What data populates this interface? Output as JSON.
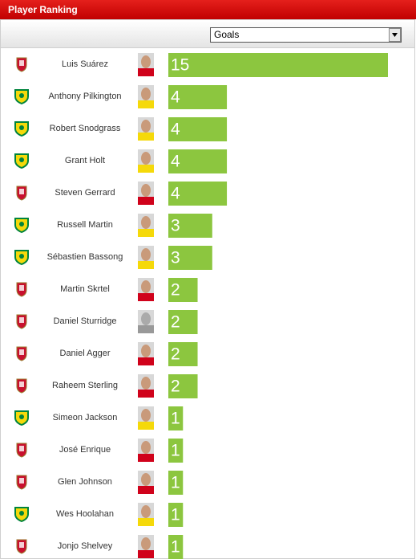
{
  "chart_data": {
    "type": "bar",
    "orientation": "horizontal",
    "title": "Player Ranking",
    "selector": "Goals",
    "categories": [
      "Luis Suárez",
      "Anthony Pilkington",
      "Robert Snodgrass",
      "Grant Holt",
      "Steven Gerrard",
      "Russell Martin",
      "Sébastien Bassong",
      "Martin Skrtel",
      "Daniel Sturridge",
      "Daniel Agger",
      "Raheem Sterling",
      "Simeon Jackson",
      "José Enrique",
      "Glen Johnson",
      "Wes Hoolahan",
      "Jonjo Shelvey"
    ],
    "values": [
      15,
      4,
      4,
      4,
      4,
      3,
      3,
      2,
      2,
      2,
      2,
      1,
      1,
      1,
      1,
      1
    ],
    "color": "#8cc63f"
  }
}
